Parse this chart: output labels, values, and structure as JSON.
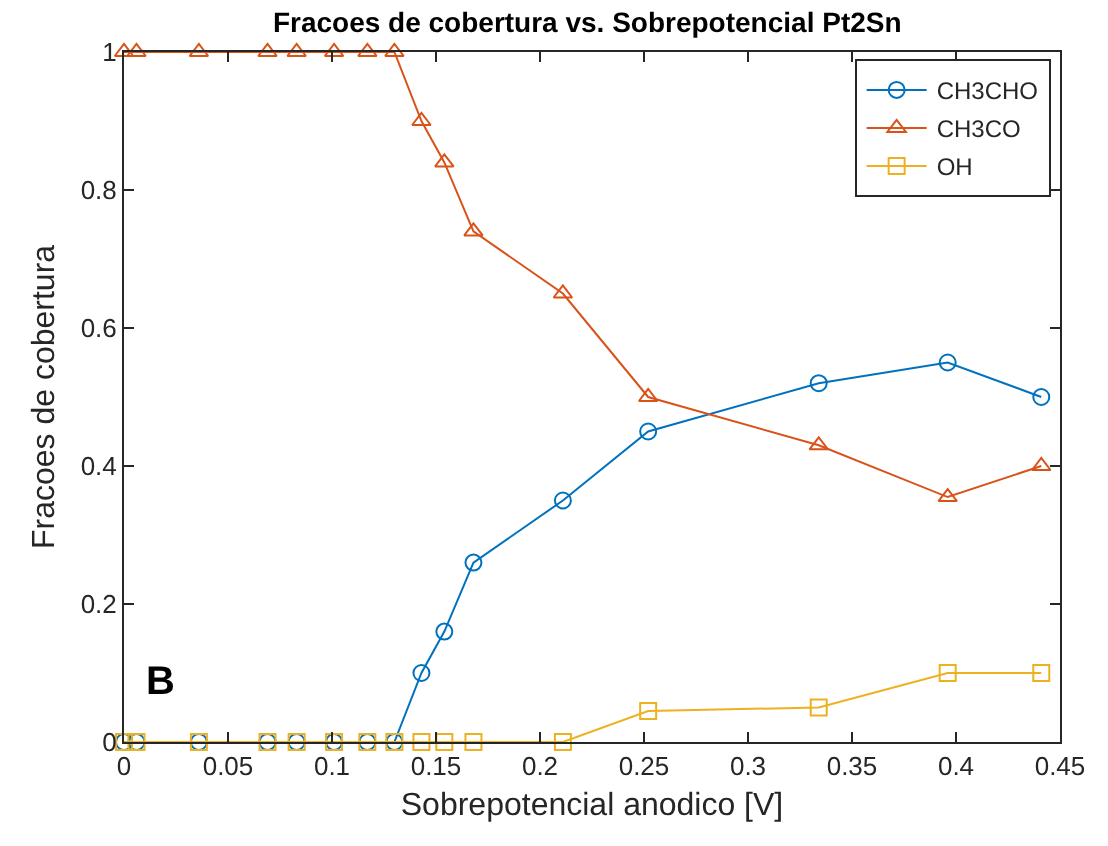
{
  "chart_data": {
    "type": "line",
    "title": "Fracoes de cobertura vs. Sobrepotencial Pt2Sn",
    "xlabel": "Sobrepotencial anodico [V]",
    "ylabel": "Fracoes de cobertura",
    "x": [
      0,
      0.006,
      0.036,
      0.069,
      0.083,
      0.101,
      0.117,
      0.13,
      0.143,
      0.154,
      0.168,
      0.211,
      0.252,
      0.334,
      0.396,
      0.441
    ],
    "series": [
      {
        "name": "CH3CHO",
        "color": "#0072bd",
        "marker": "circle",
        "values": [
          0,
          0,
          0,
          0,
          0,
          0,
          0,
          0,
          0.1,
          0.16,
          0.26,
          0.35,
          0.45,
          0.52,
          0.55,
          0.5
        ]
      },
      {
        "name": "CH3CO",
        "color": "#d95319",
        "marker": "triangle",
        "values": [
          1,
          1,
          1,
          1,
          1,
          1,
          1,
          1,
          0.9,
          0.84,
          0.74,
          0.65,
          0.5,
          0.43,
          0.355,
          0.4
        ]
      },
      {
        "name": "OH",
        "color": "#edb120",
        "marker": "square",
        "values": [
          0,
          0,
          0,
          0,
          0,
          0,
          0,
          0,
          0,
          0,
          0,
          0,
          0.045,
          0.05,
          0.1,
          0.1
        ]
      }
    ],
    "xlim": [
      0,
      0.45
    ],
    "xticks": [
      0,
      0.05,
      0.1,
      0.15,
      0.2,
      0.25,
      0.3,
      0.35,
      0.4,
      0.45
    ],
    "ylim": [
      0,
      1
    ],
    "yticks": [
      0,
      0.2,
      0.4,
      0.6,
      0.8,
      1
    ],
    "grid": false,
    "legend": "top right",
    "line_style": "solid",
    "annotations": [
      "B"
    ]
  }
}
